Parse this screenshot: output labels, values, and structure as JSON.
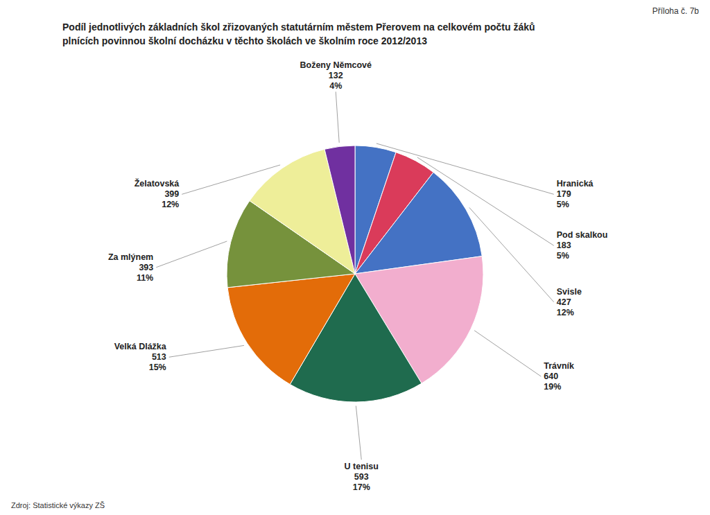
{
  "chart_data": {
    "type": "pie",
    "title": "Podíl jednotlivých základních škol zřizovaných statutárním městem Přerovem na celkovém počtu žáků",
    "subtitle": "plnících povinnou školní docházku v těchto školách ve školním roce 2012/2013",
    "annotations": [
      "Příloha č. 7b",
      "Zdroj: Statistické výkazy ZŠ"
    ],
    "categories": [
      "Hranická",
      "Pod skalkou",
      "Svisle",
      "Trávník",
      "U tenisu",
      "Velká Dlážka",
      "Za mlýnem",
      "Želatovská",
      "Boženy Němcové"
    ],
    "values": [
      179,
      183,
      427,
      640,
      593,
      513,
      393,
      399,
      132
    ],
    "percentages": [
      5,
      5,
      12,
      19,
      17,
      15,
      11,
      12,
      4
    ],
    "percentage_labels": [
      "5%",
      "5%",
      "12%",
      "19%",
      "17%",
      "15%",
      "11%",
      "12%",
      "4%"
    ],
    "colors": [
      "#4472C4",
      "#DA3B5A",
      "#4472C4",
      "#F2AECE",
      "#1F6B4E",
      "#E36C09",
      "#76923C",
      "#EEEE99",
      "#7030A0"
    ],
    "data_labels": true
  }
}
